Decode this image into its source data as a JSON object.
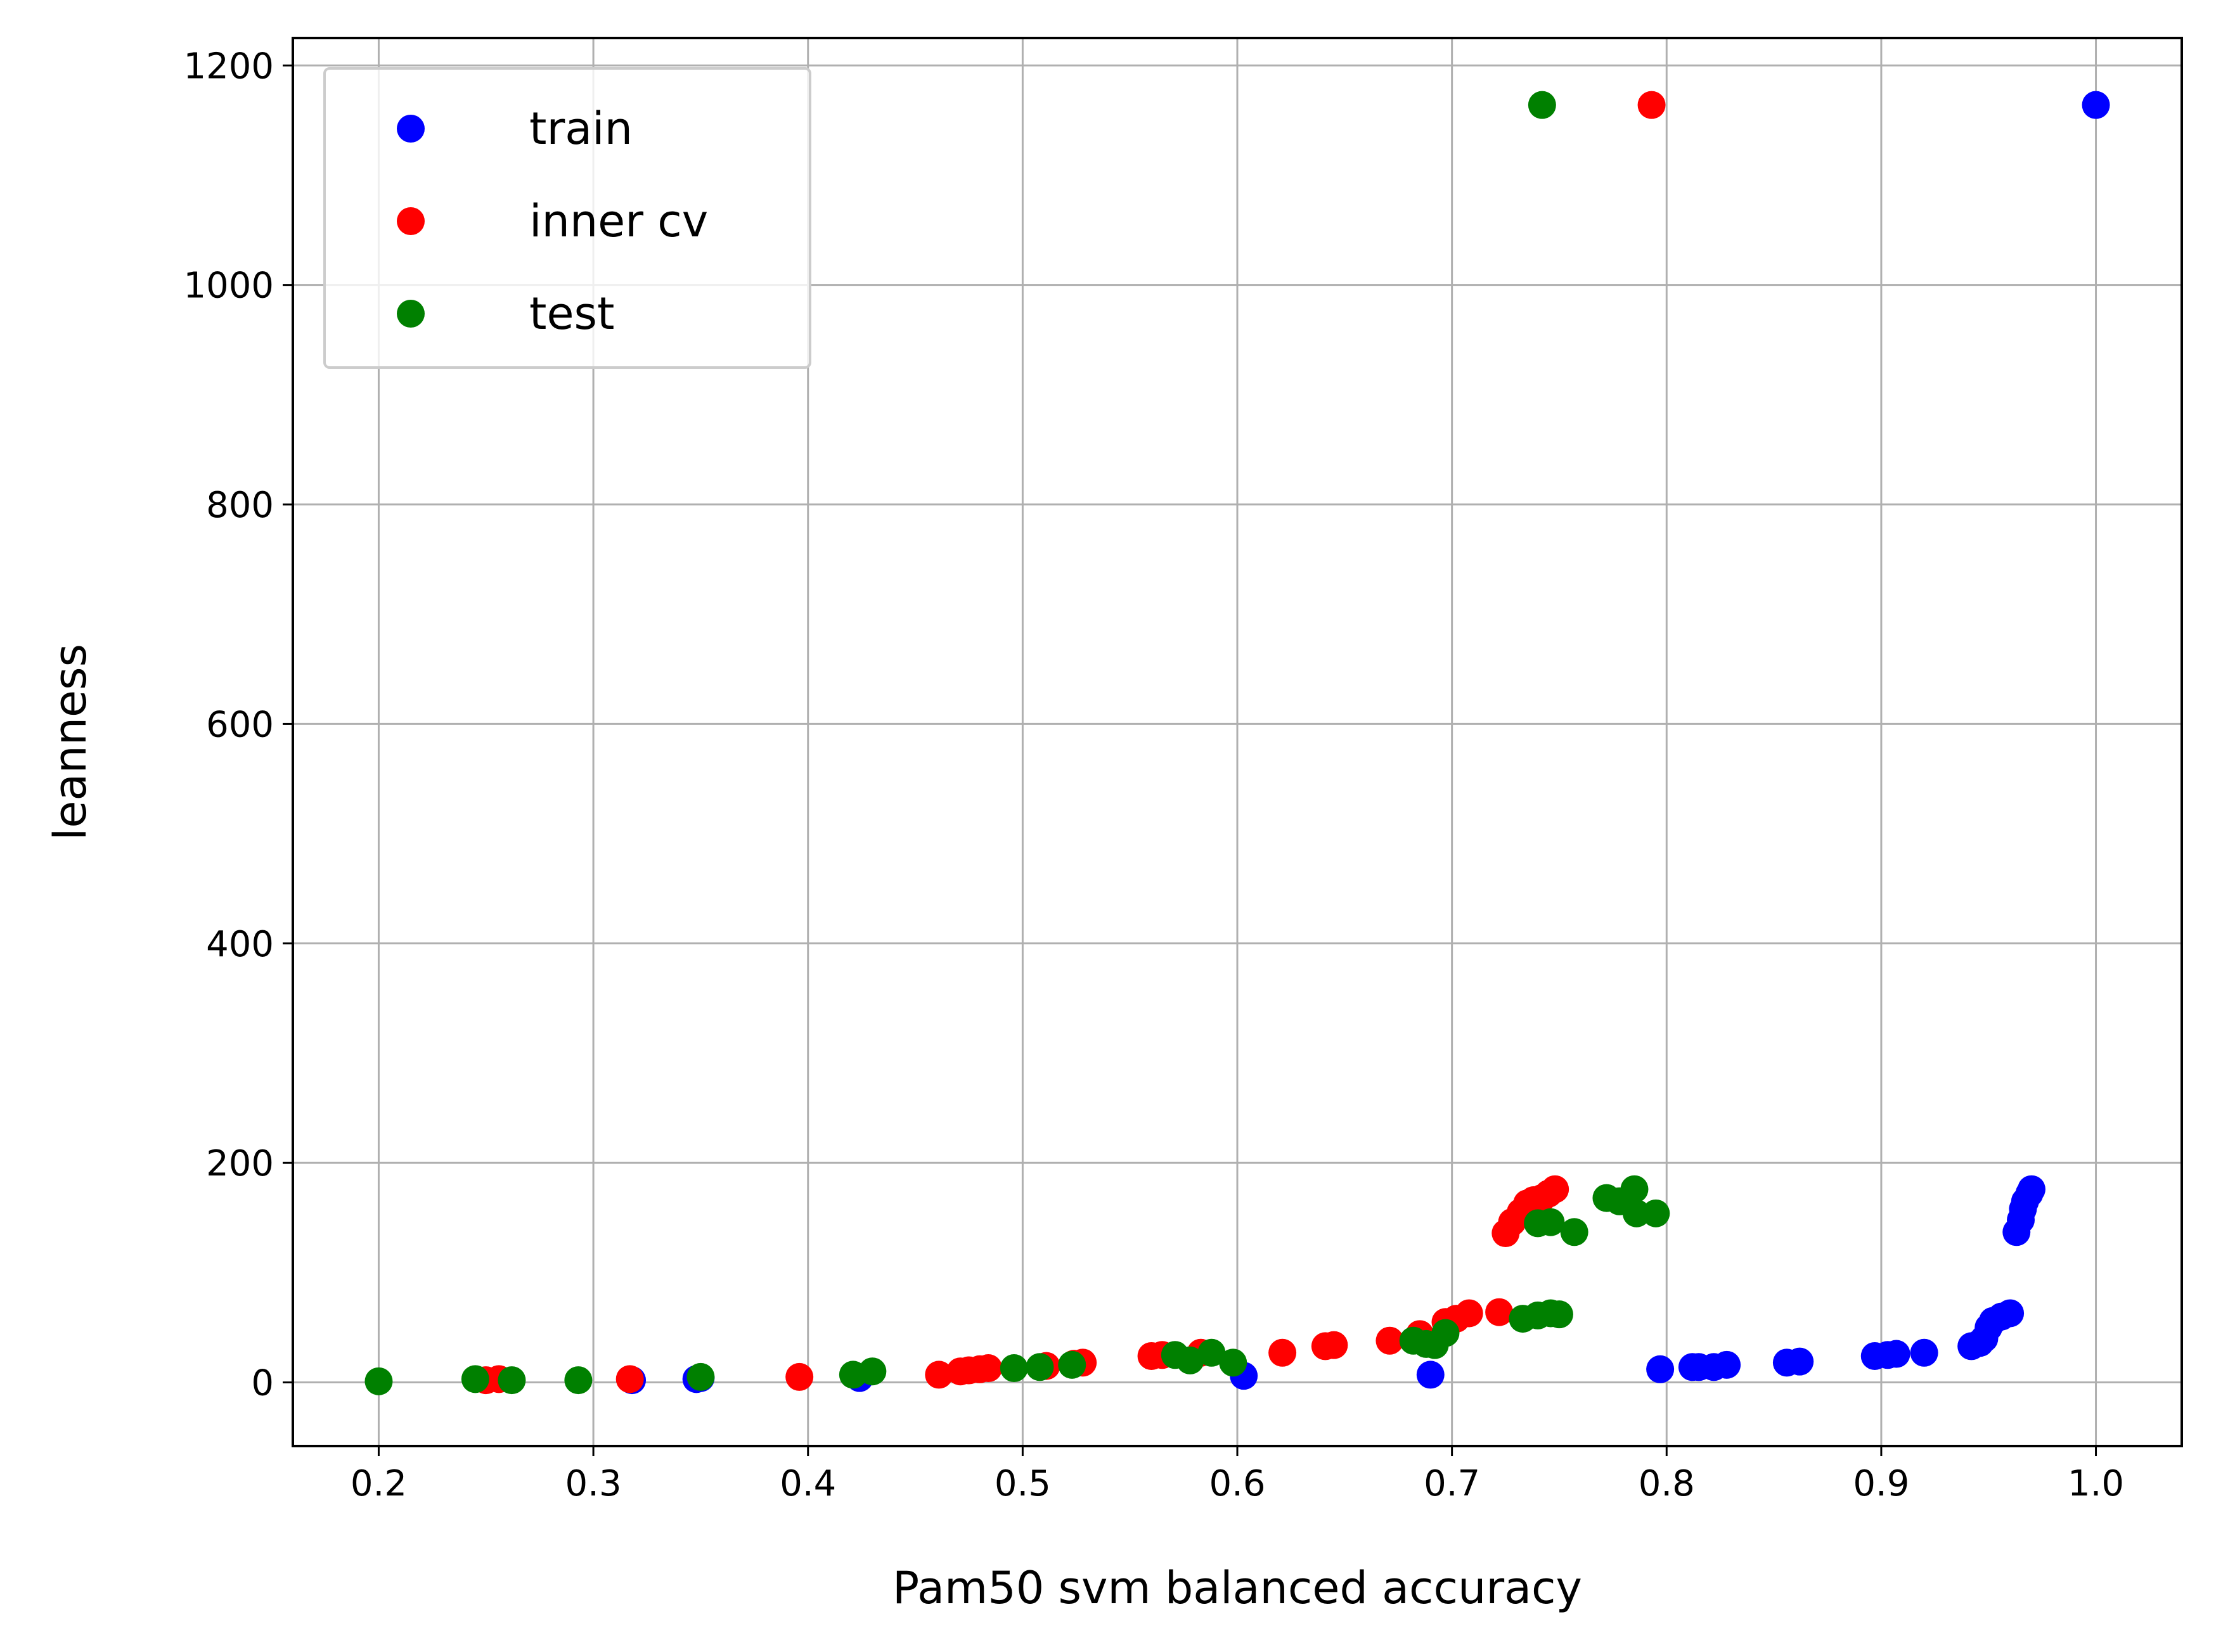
{
  "chart_data": {
    "type": "scatter",
    "title": "",
    "xlabel": "Pam50 svm balanced accuracy",
    "ylabel": "leanness",
    "xlim": [
      0.16,
      1.04
    ],
    "ylim": [
      -58,
      1225
    ],
    "xticks": [
      0.2,
      0.3,
      0.4,
      0.5,
      0.6,
      0.7,
      0.8,
      0.9,
      1.0
    ],
    "xtick_labels": [
      "0.2",
      "0.3",
      "0.4",
      "0.5",
      "0.6",
      "0.7",
      "0.8",
      "0.9",
      "1.0"
    ],
    "yticks": [
      0,
      200,
      400,
      600,
      800,
      1000,
      1200
    ],
    "ytick_labels": [
      "0",
      "200",
      "400",
      "600",
      "800",
      "1000",
      "1200"
    ],
    "grid": true,
    "legend_position": "upper-left",
    "series": [
      {
        "name": "train",
        "color": "#0000ff",
        "points": [
          [
            1.0,
            1164
          ],
          [
            0.318,
            2
          ],
          [
            0.348,
            3
          ],
          [
            0.35,
            4
          ],
          [
            0.424,
            4
          ],
          [
            0.603,
            6
          ],
          [
            0.69,
            7
          ],
          [
            0.797,
            12
          ],
          [
            0.812,
            14
          ],
          [
            0.815,
            14
          ],
          [
            0.822,
            14
          ],
          [
            0.828,
            16
          ],
          [
            0.856,
            18
          ],
          [
            0.862,
            19
          ],
          [
            0.897,
            24
          ],
          [
            0.903,
            25
          ],
          [
            0.907,
            26
          ],
          [
            0.92,
            27
          ],
          [
            0.942,
            33
          ],
          [
            0.946,
            36
          ],
          [
            0.948,
            40
          ],
          [
            0.95,
            50
          ],
          [
            0.952,
            56
          ],
          [
            0.956,
            60
          ],
          [
            0.96,
            63
          ],
          [
            0.963,
            137
          ],
          [
            0.965,
            148
          ],
          [
            0.966,
            158
          ],
          [
            0.967,
            165
          ],
          [
            0.969,
            172
          ],
          [
            0.97,
            176
          ]
        ]
      },
      {
        "name": "inner cv",
        "color": "#ff0000",
        "points": [
          [
            0.793,
            1164
          ],
          [
            0.25,
            2
          ],
          [
            0.256,
            3
          ],
          [
            0.317,
            3
          ],
          [
            0.396,
            5
          ],
          [
            0.461,
            7
          ],
          [
            0.471,
            10
          ],
          [
            0.475,
            11
          ],
          [
            0.48,
            12
          ],
          [
            0.484,
            13
          ],
          [
            0.511,
            15
          ],
          [
            0.524,
            17
          ],
          [
            0.528,
            18
          ],
          [
            0.56,
            24
          ],
          [
            0.565,
            25
          ],
          [
            0.583,
            27
          ],
          [
            0.621,
            27
          ],
          [
            0.641,
            33
          ],
          [
            0.645,
            34
          ],
          [
            0.671,
            38
          ],
          [
            0.685,
            44
          ],
          [
            0.697,
            55
          ],
          [
            0.702,
            58
          ],
          [
            0.708,
            63
          ],
          [
            0.722,
            64
          ],
          [
            0.725,
            136
          ],
          [
            0.728,
            146
          ],
          [
            0.732,
            155
          ],
          [
            0.735,
            163
          ],
          [
            0.738,
            166
          ],
          [
            0.742,
            168
          ],
          [
            0.745,
            172
          ],
          [
            0.748,
            176
          ]
        ]
      },
      {
        "name": "test",
        "color": "#008000",
        "points": [
          [
            0.742,
            1164
          ],
          [
            0.2,
            1
          ],
          [
            0.245,
            3
          ],
          [
            0.262,
            2
          ],
          [
            0.293,
            2
          ],
          [
            0.35,
            5
          ],
          [
            0.421,
            7
          ],
          [
            0.43,
            10
          ],
          [
            0.496,
            13
          ],
          [
            0.508,
            14
          ],
          [
            0.523,
            16
          ],
          [
            0.571,
            25
          ],
          [
            0.578,
            20
          ],
          [
            0.588,
            27
          ],
          [
            0.598,
            18
          ],
          [
            0.682,
            38
          ],
          [
            0.688,
            35
          ],
          [
            0.692,
            34
          ],
          [
            0.697,
            45
          ],
          [
            0.733,
            58
          ],
          [
            0.74,
            61
          ],
          [
            0.746,
            63
          ],
          [
            0.75,
            62
          ],
          [
            0.74,
            145
          ],
          [
            0.746,
            146
          ],
          [
            0.757,
            137
          ],
          [
            0.772,
            168
          ],
          [
            0.778,
            165
          ],
          [
            0.785,
            176
          ],
          [
            0.786,
            154
          ],
          [
            0.795,
            154
          ]
        ]
      }
    ]
  }
}
